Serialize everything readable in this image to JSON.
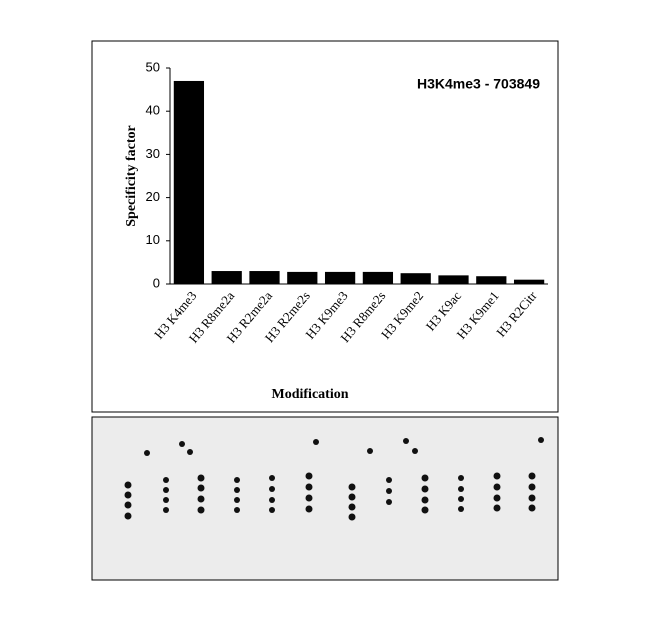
{
  "chart_data": {
    "type": "bar",
    "title": "H3K4me3 - 703849",
    "x_label": "Modification",
    "y_label": "Specificity factor",
    "categories": [
      "H3 K4me3",
      "H3 R8me2a",
      "H3 R2me2a",
      "H3 R2me2s",
      "H3 K9me3",
      "H3 R8me2s",
      "H3 K9me2",
      "H3 K9ac",
      "H3 K9me1",
      "H3 R2Citr"
    ],
    "values": [
      47,
      3,
      3,
      2.8,
      2.8,
      2.8,
      2.5,
      2,
      1.8,
      1
    ],
    "color": "#000000",
    "ylim": [
      0,
      50
    ],
    "yticks": [
      0,
      10,
      20,
      30,
      40,
      50
    ],
    "grid": false
  }
}
